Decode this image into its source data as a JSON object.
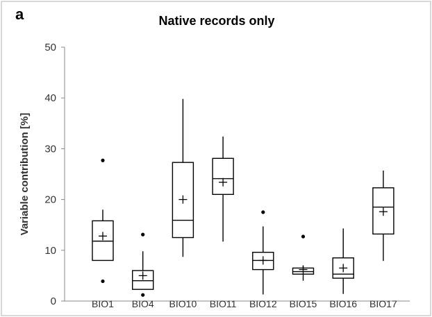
{
  "panel_label": "a",
  "chart_data": {
    "type": "boxplot",
    "title": "Native records only",
    "xlabel": "",
    "ylabel": "Variable contribution [%]",
    "ylim": [
      0,
      50
    ],
    "yticks": [
      0,
      10,
      20,
      30,
      40,
      50
    ],
    "grid": false,
    "colors": {
      "box_fill": "#ffffff",
      "stroke": "#000000",
      "axis": "#888888",
      "frame": "#cccccc"
    },
    "categories": [
      "BIO1",
      "BIO4",
      "BIO10",
      "BIO11",
      "BIO12",
      "BIO15",
      "BIO16",
      "BIO17"
    ],
    "boxes": [
      {
        "label": "BIO1",
        "whisker_low": 8.0,
        "q1": 8.0,
        "median": 11.8,
        "q3": 15.8,
        "whisker_high": 18.0,
        "mean": 12.8,
        "outliers": [
          27.7,
          3.9
        ]
      },
      {
        "label": "BIO4",
        "whisker_low": 2.3,
        "q1": 2.3,
        "median": 4.0,
        "q3": 6.0,
        "whisker_high": 9.8,
        "mean": 5.0,
        "outliers": [
          13.1,
          1.2
        ]
      },
      {
        "label": "BIO10",
        "whisker_low": 8.7,
        "q1": 12.5,
        "median": 15.9,
        "q3": 27.3,
        "whisker_high": 39.8,
        "mean": 20.0,
        "outliers": []
      },
      {
        "label": "BIO11",
        "whisker_low": 11.7,
        "q1": 21.0,
        "median": 24.1,
        "q3": 28.1,
        "whisker_high": 32.4,
        "mean": 23.4,
        "outliers": []
      },
      {
        "label": "BIO12",
        "whisker_low": 1.3,
        "q1": 6.2,
        "median": 8.0,
        "q3": 9.6,
        "whisker_high": 14.7,
        "mean": 8.0,
        "outliers": [
          17.5
        ]
      },
      {
        "label": "BIO15",
        "whisker_low": 4.0,
        "q1": 5.3,
        "median": 5.8,
        "q3": 6.5,
        "whisker_high": 7.0,
        "mean": 6.2,
        "outliers": [
          12.7
        ]
      },
      {
        "label": "BIO16",
        "whisker_low": 1.4,
        "q1": 4.5,
        "median": 5.3,
        "q3": 8.5,
        "whisker_high": 14.3,
        "mean": 6.5,
        "outliers": []
      },
      {
        "label": "BIO17",
        "whisker_low": 7.9,
        "q1": 13.2,
        "median": 18.5,
        "q3": 22.3,
        "whisker_high": 25.7,
        "mean": 17.6,
        "outliers": []
      }
    ]
  }
}
